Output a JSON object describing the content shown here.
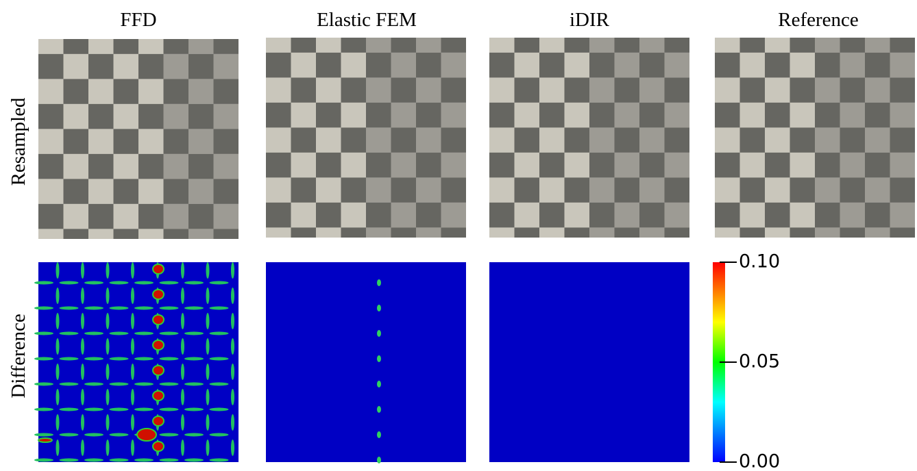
{
  "columns": [
    "FFD",
    "Elastic FEM",
    "iDIR",
    "Reference"
  ],
  "rows": [
    "Resampled",
    "Difference"
  ],
  "colorbar": {
    "range": [
      0,
      0.1
    ],
    "ticks": [
      {
        "value": 0,
        "label": "0.00"
      },
      {
        "value": 0.05,
        "label": "0.05"
      },
      {
        "value": 0.1,
        "label": "0.10"
      }
    ]
  }
}
